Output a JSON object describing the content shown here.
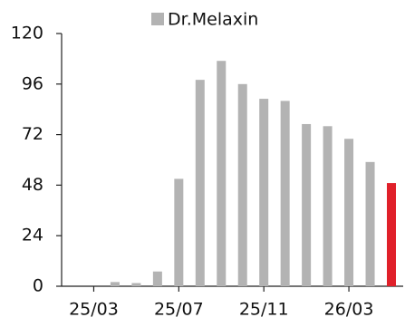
{
  "chart_data": {
    "type": "bar",
    "legend_label": "Dr.Melaxin",
    "categories": [
      null,
      "25/03",
      null,
      null,
      null,
      "25/07",
      null,
      null,
      null,
      "25/11",
      null,
      null,
      null,
      "26/03",
      null,
      null
    ],
    "values": [
      null,
      null,
      2,
      1.5,
      7,
      51,
      98,
      107,
      96,
      89,
      88,
      77,
      76,
      70,
      59,
      49
    ],
    "colors": [
      "#b3b3b3",
      "#b3b3b3",
      "#b3b3b3",
      "#b3b3b3",
      "#b3b3b3",
      "#b3b3b3",
      "#b3b3b3",
      "#b3b3b3",
      "#b3b3b3",
      "#b3b3b3",
      "#b3b3b3",
      "#b3b3b3",
      "#b3b3b3",
      "#b3b3b3",
      "#b3b3b3",
      "#e0202a"
    ],
    "legend_color": "#b3b3b3",
    "ylim": [
      0,
      120
    ],
    "yticks": [
      0,
      24,
      48,
      72,
      96,
      120
    ]
  }
}
